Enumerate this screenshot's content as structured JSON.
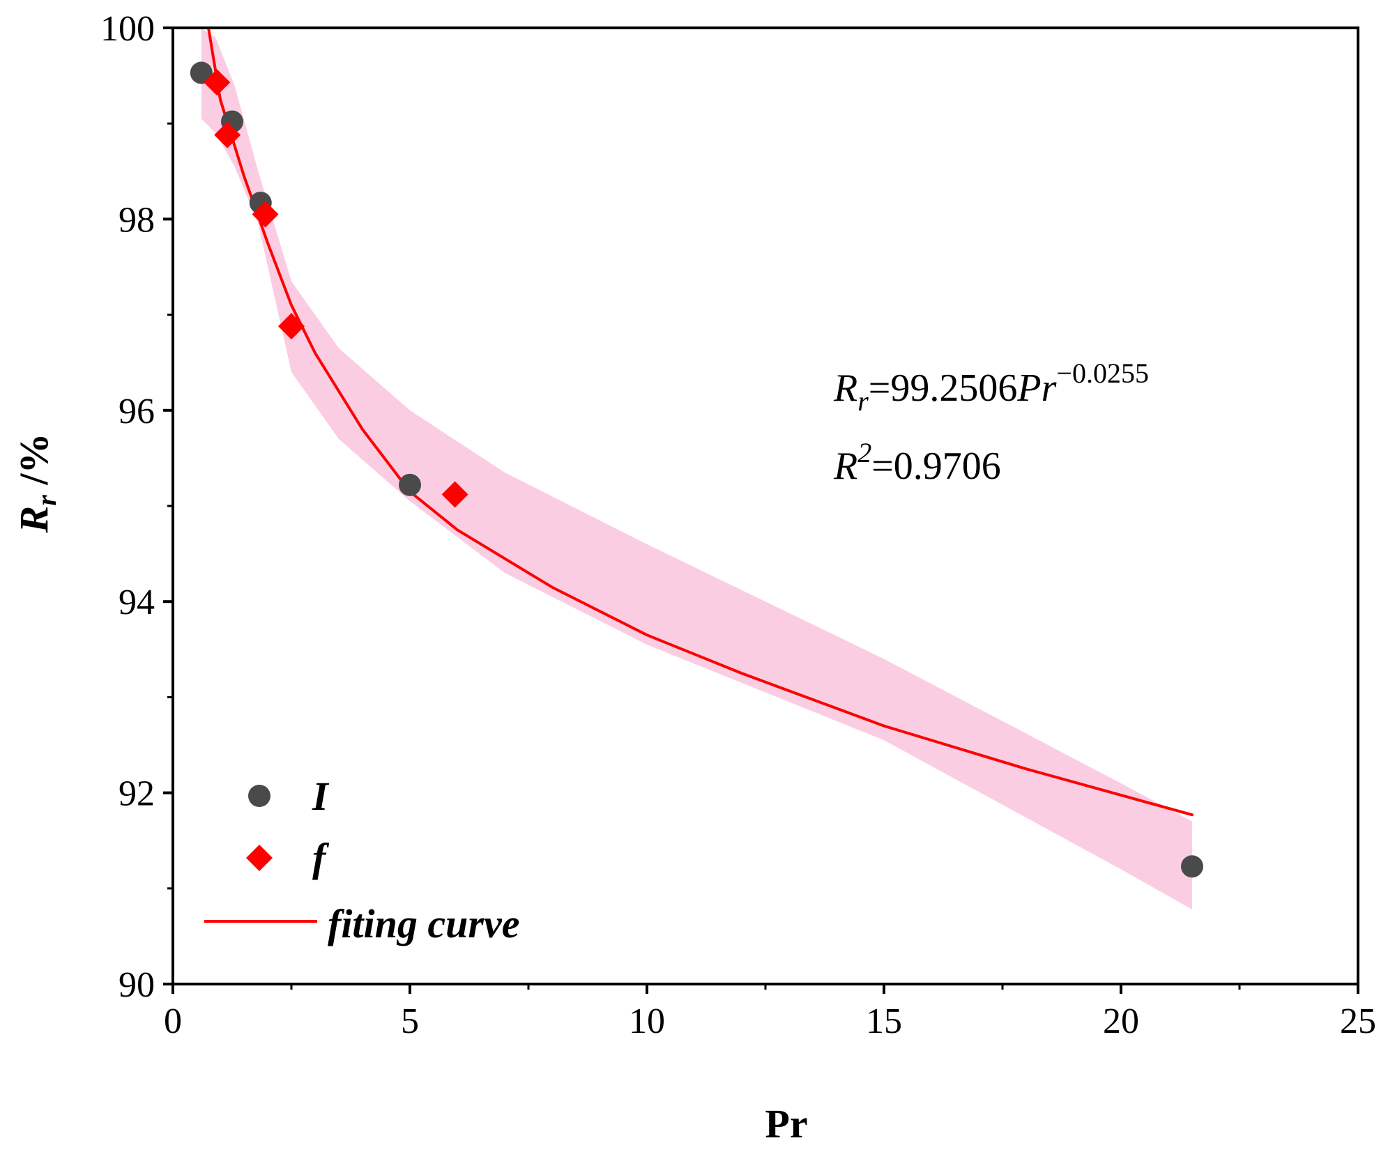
{
  "chart_data": {
    "type": "scatter",
    "xlabel": "Pr",
    "ylabel": {
      "main": "R",
      "sub": "r",
      "unit": " /%"
    },
    "xlim": [
      0,
      25
    ],
    "ylim": [
      90,
      100
    ],
    "xticks": [
      0,
      5,
      10,
      15,
      20,
      25
    ],
    "yticks": [
      90,
      92,
      94,
      96,
      98,
      100
    ],
    "xtick_labels": [
      "0",
      "5",
      "10",
      "15",
      "20",
      "25"
    ],
    "ytick_labels": [
      "90",
      "92",
      "94",
      "96",
      "98",
      "100"
    ],
    "series": [
      {
        "name": "I",
        "marker": "circle",
        "color": "#4a4a4a",
        "points": [
          [
            0.6,
            99.53
          ],
          [
            1.25,
            99.02
          ],
          [
            1.85,
            98.17
          ],
          [
            5.0,
            95.22
          ],
          [
            21.5,
            91.23
          ]
        ]
      },
      {
        "name": "f",
        "marker": "diamond",
        "color": "#ff0000",
        "points": [
          [
            0.93,
            99.43
          ],
          [
            1.15,
            98.88
          ],
          [
            1.95,
            98.05
          ],
          [
            2.5,
            96.88
          ],
          [
            5.95,
            95.12
          ]
        ]
      }
    ],
    "fit": {
      "name": "fiting curve",
      "color": "#ff0000",
      "x_range": [
        0.75,
        21.5
      ],
      "points": [
        [
          0.75,
          100.0
        ],
        [
          1.0,
          99.25
        ],
        [
          1.5,
          98.45
        ],
        [
          2.0,
          97.75
        ],
        [
          2.5,
          97.1
        ],
        [
          3.0,
          96.6
        ],
        [
          4.0,
          95.8
        ],
        [
          5.0,
          95.15
        ],
        [
          6.0,
          94.75
        ],
        [
          8.0,
          94.15
        ],
        [
          10.0,
          93.65
        ],
        [
          12.0,
          93.25
        ],
        [
          15.0,
          92.7
        ],
        [
          18.0,
          92.25
        ],
        [
          21.5,
          91.77
        ]
      ]
    },
    "confidence_band": {
      "color": "#fbcde3",
      "upper": [
        [
          0.6,
          100.0
        ],
        [
          0.9,
          99.9
        ],
        [
          1.3,
          99.4
        ],
        [
          1.8,
          98.5
        ],
        [
          2.5,
          97.35
        ],
        [
          3.5,
          96.65
        ],
        [
          5.0,
          96.0
        ],
        [
          7.0,
          95.35
        ],
        [
          10.0,
          94.6
        ],
        [
          15.0,
          93.4
        ],
        [
          20.0,
          92.1
        ],
        [
          21.5,
          91.7
        ]
      ],
      "lower": [
        [
          0.6,
          99.05
        ],
        [
          0.9,
          98.9
        ],
        [
          1.3,
          98.55
        ],
        [
          1.8,
          97.95
        ],
        [
          2.5,
          96.4
        ],
        [
          3.5,
          95.7
        ],
        [
          5.0,
          95.05
        ],
        [
          7.0,
          94.3
        ],
        [
          10.0,
          93.55
        ],
        [
          15.0,
          92.55
        ],
        [
          20.0,
          91.2
        ],
        [
          21.5,
          90.78
        ]
      ]
    },
    "equation": {
      "R": "R",
      "r": "r",
      "coef": "=99.2506",
      "Pr": "Pr",
      "exp": "−0.0255"
    },
    "r_squared": {
      "R": "R",
      "sup": "2",
      "value": "=0.9706"
    },
    "legend": {
      "position": "bottom-left",
      "entries": [
        "I",
        "f",
        "fiting curve"
      ]
    }
  }
}
